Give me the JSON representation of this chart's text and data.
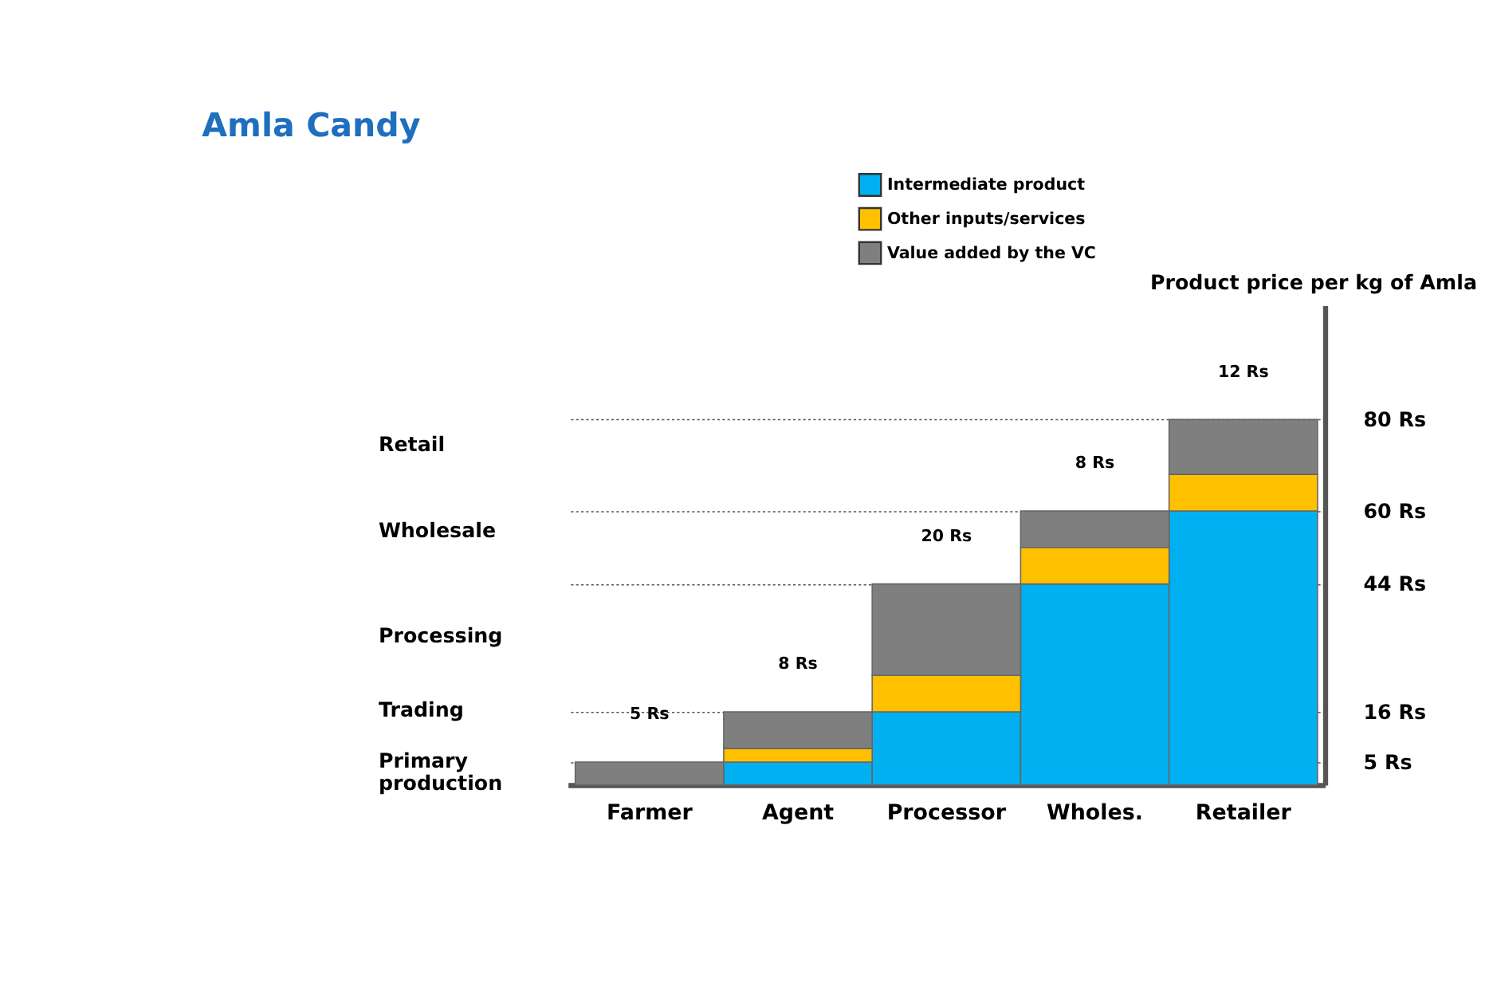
{
  "chart_data": {
    "type": "bar",
    "title": "Amla Candy",
    "categories": [
      "Farmer",
      "Agent",
      "Processor",
      "Wholes.",
      "Retailer"
    ],
    "stacked": true,
    "series": [
      {
        "name": "Intermediate product",
        "color": "#00b0f0",
        "values": [
          null,
          5,
          16,
          44,
          60
        ]
      },
      {
        "name": "Other inputs/services",
        "color": "#ffc000",
        "values": [
          null,
          3,
          8,
          8,
          8
        ]
      },
      {
        "name": "Value added by the VC",
        "color": "#7f7f7f",
        "values": [
          5,
          8,
          20,
          8,
          12
        ],
        "value_labels": [
          "5 Rs",
          "8 Rs",
          "20 Rs",
          "8 Rs",
          "12 Rs"
        ]
      }
    ],
    "ylabel": "Product price per kg of Amla",
    "ylim": [
      0,
      105
    ],
    "yticks": [
      {
        "value": 5,
        "label": "5 Rs"
      },
      {
        "value": 16,
        "label": "16 Rs"
      },
      {
        "value": 44,
        "label": "44 Rs"
      },
      {
        "value": 60,
        "label": "60 Rs"
      },
      {
        "value": 80,
        "label": "80 Rs"
      }
    ],
    "grid": "y",
    "legend": "top",
    "annotations": [
      "Retail",
      "Wholesale",
      "Processing",
      "Trading",
      "Primary production"
    ]
  }
}
